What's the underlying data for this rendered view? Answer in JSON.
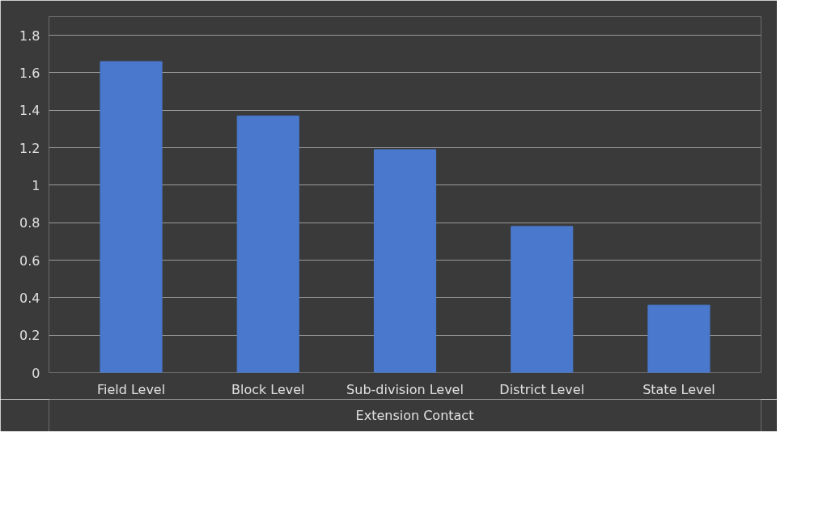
{
  "chart_data": {
    "type": "bar",
    "categories": [
      "Field Level",
      "Block Level",
      "Sub-division Level",
      "District Level",
      "State Level"
    ],
    "series": [
      {
        "name": "Extension Contact",
        "color": "#4a78cc",
        "values": [
          1.66,
          1.37,
          1.19,
          0.78,
          0.36
        ]
      }
    ],
    "ylim": [
      0,
      1.9
    ],
    "yticks": [
      0,
      0.2,
      0.4,
      0.6,
      0.8,
      1,
      1.2,
      1.4,
      1.6,
      1.8
    ],
    "grid": "y",
    "legend": "bottom"
  }
}
